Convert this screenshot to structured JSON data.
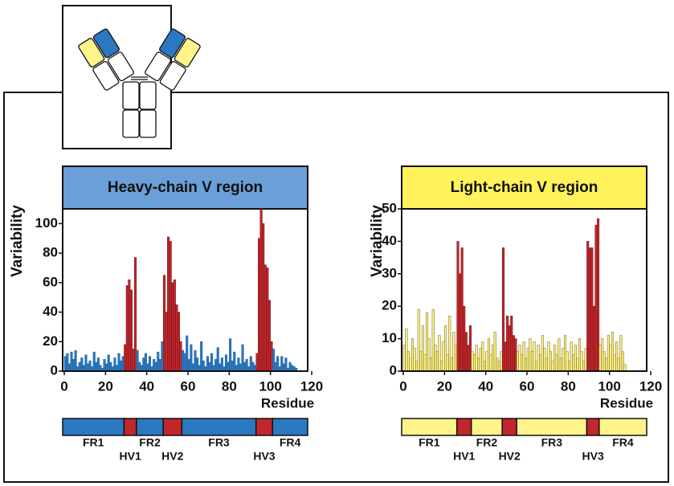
{
  "chart_data": [
    {
      "type": "bar",
      "title": "Heavy-chain V region",
      "x_label": "Residue",
      "y_label": "Variability",
      "title_color": "#6a9fd8",
      "color": "#2a78c0",
      "highlight_color": "#c1272d",
      "x": [
        1,
        2,
        3,
        4,
        5,
        6,
        7,
        8,
        9,
        10,
        11,
        12,
        13,
        14,
        15,
        16,
        17,
        18,
        19,
        20,
        21,
        22,
        23,
        24,
        25,
        26,
        27,
        28,
        29,
        30,
        31,
        32,
        33,
        34,
        35,
        36,
        37,
        38,
        39,
        40,
        41,
        42,
        43,
        44,
        45,
        46,
        47,
        48,
        49,
        50,
        51,
        52,
        53,
        54,
        55,
        56,
        57,
        58,
        59,
        60,
        61,
        62,
        63,
        64,
        65,
        66,
        67,
        68,
        69,
        70,
        71,
        72,
        73,
        74,
        75,
        76,
        77,
        78,
        79,
        80,
        81,
        82,
        83,
        84,
        85,
        86,
        87,
        88,
        89,
        90,
        91,
        92,
        93,
        94,
        95,
        96,
        97,
        98,
        99,
        100,
        101,
        102,
        103,
        104,
        105,
        106,
        107,
        108,
        109,
        110,
        111,
        112,
        113
      ],
      "values": [
        10,
        12,
        5,
        13,
        8,
        14,
        3,
        6,
        9,
        4,
        11,
        5,
        7,
        3,
        13,
        6,
        9,
        4,
        2,
        8,
        5,
        11,
        6,
        3,
        9,
        4,
        12,
        7,
        10,
        18,
        58,
        62,
        55,
        15,
        77,
        14,
        6,
        4,
        9,
        12,
        5,
        10,
        3,
        8,
        6,
        13,
        8,
        20,
        65,
        40,
        91,
        88,
        60,
        62,
        45,
        40,
        20,
        14,
        12,
        24,
        8,
        18,
        5,
        14,
        9,
        4,
        20,
        7,
        3,
        10,
        6,
        12,
        4,
        8,
        16,
        5,
        9,
        3,
        11,
        6,
        22,
        7,
        13,
        4,
        9,
        5,
        18,
        6,
        8,
        3,
        10,
        6,
        4,
        12,
        90,
        110,
        100,
        72,
        70,
        48,
        20,
        15,
        6,
        10,
        3,
        10,
        5,
        9,
        2,
        6,
        4,
        3,
        2
      ],
      "xlim": [
        0,
        120
      ],
      "xticks": [
        0,
        20,
        40,
        60,
        80,
        100,
        120
      ],
      "ylim": [
        0,
        110
      ],
      "yticks": [
        0,
        20,
        40,
        60,
        80,
        100
      ],
      "regions": [
        {
          "label": "FR1",
          "start": 0,
          "end": 29,
          "highlight": false
        },
        {
          "label": "HV1",
          "start": 29,
          "end": 35,
          "highlight": true
        },
        {
          "label": "FR2",
          "start": 35,
          "end": 48,
          "highlight": false
        },
        {
          "label": "HV2",
          "start": 48,
          "end": 57,
          "highlight": true
        },
        {
          "label": "FR3",
          "start": 57,
          "end": 93,
          "highlight": false
        },
        {
          "label": "HV3",
          "start": 93,
          "end": 101,
          "highlight": true
        },
        {
          "label": "FR4",
          "start": 101,
          "end": 118,
          "highlight": false
        }
      ]
    },
    {
      "type": "bar",
      "title": "Light-chain V region",
      "x_label": "Residue",
      "y_label": "Variability",
      "title_color": "#fff25a",
      "color": "#fff48a",
      "highlight_color": "#c1272d",
      "x": [
        1,
        2,
        3,
        4,
        5,
        6,
        7,
        8,
        9,
        10,
        11,
        12,
        13,
        14,
        15,
        16,
        17,
        18,
        19,
        20,
        21,
        22,
        23,
        24,
        25,
        26,
        27,
        28,
        29,
        30,
        31,
        32,
        33,
        34,
        35,
        36,
        37,
        38,
        39,
        40,
        41,
        42,
        43,
        44,
        45,
        46,
        47,
        48,
        49,
        50,
        51,
        52,
        53,
        54,
        55,
        56,
        57,
        58,
        59,
        60,
        61,
        62,
        63,
        64,
        65,
        66,
        67,
        68,
        69,
        70,
        71,
        72,
        73,
        74,
        75,
        76,
        77,
        78,
        79,
        80,
        81,
        82,
        83,
        84,
        85,
        86,
        87,
        88,
        89,
        90,
        91,
        92,
        93,
        94,
        95,
        96,
        97,
        98,
        99,
        100,
        101,
        102,
        103,
        104,
        105,
        106,
        107,
        108
      ],
      "values": [
        8,
        13,
        6,
        4,
        10,
        7,
        3,
        19,
        6,
        14,
        5,
        18,
        10,
        4,
        19,
        8,
        6,
        11,
        3,
        9,
        14,
        5,
        17,
        4,
        12,
        8,
        40,
        30,
        38,
        20,
        12,
        8,
        14,
        6,
        5,
        8,
        4,
        7,
        9,
        3,
        6,
        10,
        5,
        8,
        12,
        4,
        3,
        6,
        38,
        9,
        17,
        14,
        17,
        11,
        10,
        6,
        8,
        5,
        9,
        4,
        7,
        10,
        6,
        9,
        3,
        8,
        5,
        11,
        7,
        4,
        9,
        6,
        3,
        8,
        5,
        10,
        4,
        7,
        11,
        6,
        3,
        9,
        5,
        8,
        4,
        10,
        6,
        3,
        7,
        40,
        38,
        38,
        20,
        45,
        47,
        8,
        10,
        6,
        4,
        11,
        8,
        12,
        5,
        9,
        4,
        11,
        6,
        2
      ],
      "xlim": [
        0,
        120
      ],
      "xticks": [
        0,
        20,
        40,
        60,
        80,
        100,
        120
      ],
      "ylim": [
        0,
        50
      ],
      "yticks": [
        0,
        10,
        20,
        30,
        40,
        50
      ],
      "regions": [
        {
          "label": "FR1",
          "start": 0,
          "end": 26,
          "highlight": false
        },
        {
          "label": "HV1",
          "start": 26,
          "end": 33,
          "highlight": true
        },
        {
          "label": "FR2",
          "start": 33,
          "end": 48,
          "highlight": false
        },
        {
          "label": "HV2",
          "start": 48,
          "end": 55,
          "highlight": true
        },
        {
          "label": "FR3",
          "start": 55,
          "end": 89,
          "highlight": false
        },
        {
          "label": "HV3",
          "start": 89,
          "end": 95,
          "highlight": true
        },
        {
          "label": "FR4",
          "start": 95,
          "end": 118,
          "highlight": false
        }
      ]
    }
  ]
}
